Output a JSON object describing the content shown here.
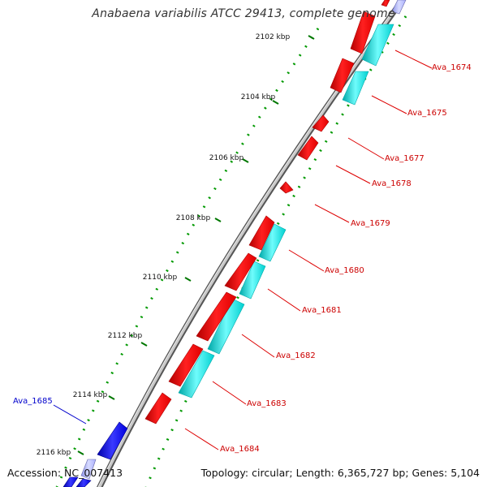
{
  "title": "Anabaena variabilis ATCC 29413, complete genome",
  "footer": {
    "accession": "Accession: NC_007413",
    "topology": "Topology: circular; Length: 6,365,727 bp; Genes: 5,104"
  },
  "colors": {
    "forward_cds": "#ff0000",
    "forward_feature": "#00cccc",
    "reverse_cds": "#0000ee",
    "reverse_feature": "#aab0ff",
    "backbone": "#999999",
    "tick": "#007700",
    "label_forward": "#cc0000",
    "label_reverse": "#0000cc"
  },
  "ticks": [
    {
      "label": "2102 kbp",
      "kbp": 2102
    },
    {
      "label": "2104 kbp",
      "kbp": 2104
    },
    {
      "label": "2106 kbp",
      "kbp": 2106
    },
    {
      "label": "2108 kbp",
      "kbp": 2108
    },
    {
      "label": "2110 kbp",
      "kbp": 2110
    },
    {
      "label": "2112 kbp",
      "kbp": 2112
    },
    {
      "label": "2114 kbp",
      "kbp": 2114
    },
    {
      "label": "2116 kbp",
      "kbp": 2116
    }
  ],
  "genes": [
    {
      "label": "Ava_1674",
      "strand": "forward"
    },
    {
      "label": "Ava_1675",
      "strand": "forward"
    },
    {
      "label": "Ava_1677",
      "strand": "forward"
    },
    {
      "label": "Ava_1678",
      "strand": "forward"
    },
    {
      "label": "Ava_1679",
      "strand": "forward"
    },
    {
      "label": "Ava_1680",
      "strand": "forward"
    },
    {
      "label": "Ava_1681",
      "strand": "forward"
    },
    {
      "label": "Ava_1682",
      "strand": "forward"
    },
    {
      "label": "Ava_1683",
      "strand": "forward"
    },
    {
      "label": "Ava_1684",
      "strand": "forward"
    },
    {
      "label": "Ava_1685",
      "strand": "reverse"
    }
  ]
}
